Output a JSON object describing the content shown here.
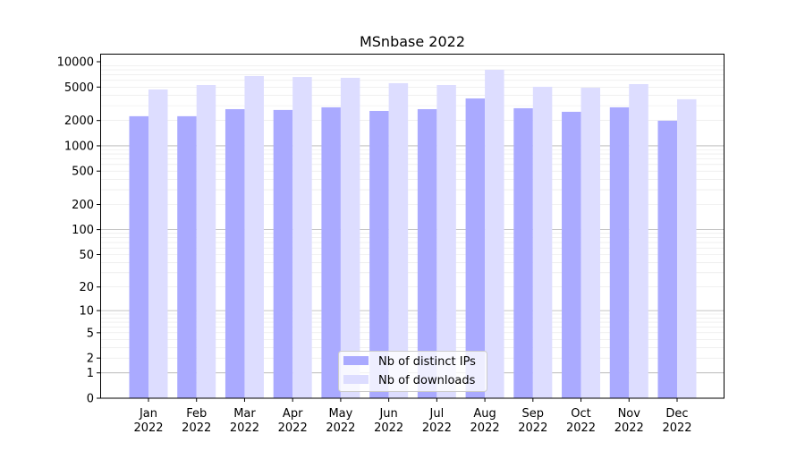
{
  "chart_data": {
    "type": "bar",
    "title": "MSnbase 2022",
    "xlabel": "",
    "ylabel": "",
    "yscale": "log(1+x)",
    "ylim": [
      0,
      10000
    ],
    "grid": true,
    "legend_position": "bottom-center",
    "categories": [
      "Jan\n2022",
      "Feb\n2022",
      "Mar\n2022",
      "Apr\n2022",
      "May\n2022",
      "Jun\n2022",
      "Jul\n2022",
      "Aug\n2022",
      "Sep\n2022",
      "Oct\n2022",
      "Nov\n2022",
      "Dec\n2022"
    ],
    "yticks": [
      0,
      1,
      2,
      5,
      10,
      20,
      50,
      100,
      200,
      500,
      1000,
      2000,
      5000,
      10000
    ],
    "series": [
      {
        "name": "Nb of distinct IPs",
        "color": "#aaaaff",
        "values": [
          2250,
          2250,
          2730,
          2670,
          2870,
          2600,
          2730,
          3660,
          2800,
          2540,
          2870,
          1990
        ]
      },
      {
        "name": "Nb of downloads",
        "color": "#ddddff",
        "values": [
          4680,
          5290,
          6760,
          6590,
          6440,
          5560,
          5290,
          8020,
          5040,
          4910,
          5420,
          3580
        ]
      }
    ]
  }
}
